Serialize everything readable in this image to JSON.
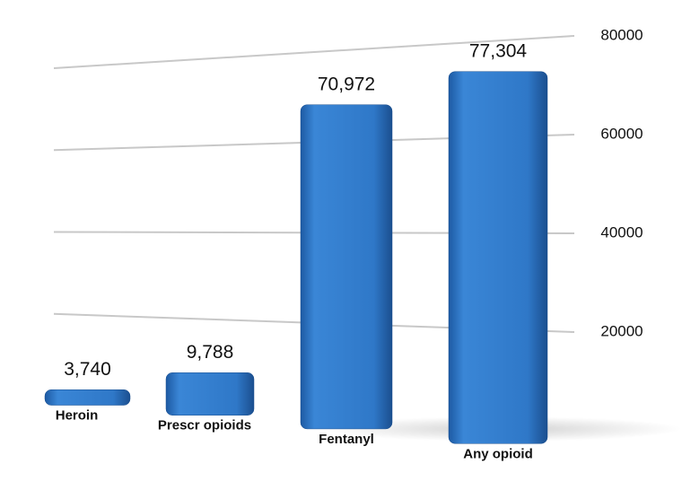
{
  "chart_data": {
    "type": "bar",
    "categories": [
      "Heroin",
      "Prescr opioids",
      "Fentanyl",
      "Any opioid"
    ],
    "values": [
      3740,
      9788,
      70972,
      77304
    ],
    "value_labels": [
      "3,740",
      "9,788",
      "70,972",
      "77,304"
    ],
    "color": "#2f78c8",
    "ylim": [
      0,
      80000
    ],
    "yticks": [
      20000,
      40000,
      60000,
      80000
    ],
    "grid": true
  }
}
